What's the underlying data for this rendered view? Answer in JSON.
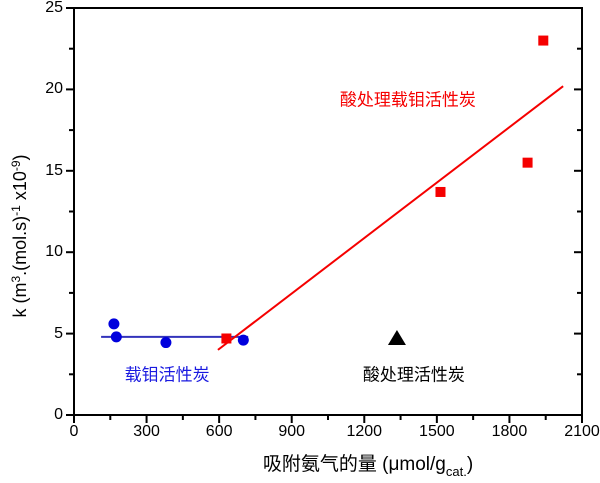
{
  "chart_data": {
    "type": "scatter",
    "title": "",
    "background": "#FFFFFF",
    "axis_color": "#000000",
    "xlim": [
      0,
      2100
    ],
    "ylim": [
      0,
      25
    ],
    "x_major_ticks": [
      0,
      300,
      600,
      900,
      1200,
      1500,
      1800,
      2100
    ],
    "x_minor_ticks": [
      150,
      450,
      750,
      1050,
      1350,
      1650,
      1950
    ],
    "y_major_ticks": [
      0,
      5,
      10,
      15,
      20,
      25
    ],
    "y_minor_ticks": [
      2.5,
      7.5,
      12.5,
      17.5,
      22.5
    ],
    "xlabel": {
      "main": "吸附氨气的量 (μmol/g",
      "subscript": "cat.",
      "close": ")"
    },
    "ylabel": {
      "segments": [
        {
          "text": "k (m"
        },
        {
          "text": "3"
        },
        {
          "text": ".(mol.s)"
        },
        {
          "text": "-1"
        },
        {
          "text": " x10"
        },
        {
          "text": "-9"
        },
        {
          "text": ")"
        }
      ]
    },
    "series": [
      {
        "name": "载钼活性炭",
        "marker": "circle",
        "color": "#0000DD",
        "marker_size": 11,
        "points": [
          [
            165,
            5.6
          ],
          [
            175,
            4.8
          ],
          [
            380,
            4.45
          ],
          [
            700,
            4.6
          ]
        ],
        "fit_line": {
          "x1": 112,
          "y1": 4.8,
          "x2": 720,
          "y2": 4.8,
          "color": "#3333BB",
          "width": 2
        }
      },
      {
        "name": "酸处理载钼活性炭",
        "marker": "square",
        "color": "#F50000",
        "marker_size": 10,
        "points": [
          [
            630,
            4.7
          ],
          [
            1515,
            13.7
          ],
          [
            1875,
            15.5
          ],
          [
            1940,
            23.0
          ]
        ],
        "fit_line": {
          "x1": 595,
          "y1": 4.0,
          "x2": 2022,
          "y2": 20.2,
          "color": "#F50000",
          "width": 2
        }
      },
      {
        "name": "酸处理活性炭",
        "marker": "triangle",
        "color": "#000000",
        "marker_size": 17,
        "points": [
          [
            1335,
            4.7
          ]
        ]
      }
    ],
    "annotations": [
      {
        "text": "酸处理载钼活性炭",
        "color": "#F50000",
        "x": 1380,
        "y": 19.5
      },
      {
        "text": "载钼活性炭",
        "color": "#1A1AE0",
        "x": 385,
        "y": 2.6
      },
      {
        "text": "酸处理活性炭",
        "color": "#000000",
        "x": 1405,
        "y": 2.55
      }
    ]
  }
}
